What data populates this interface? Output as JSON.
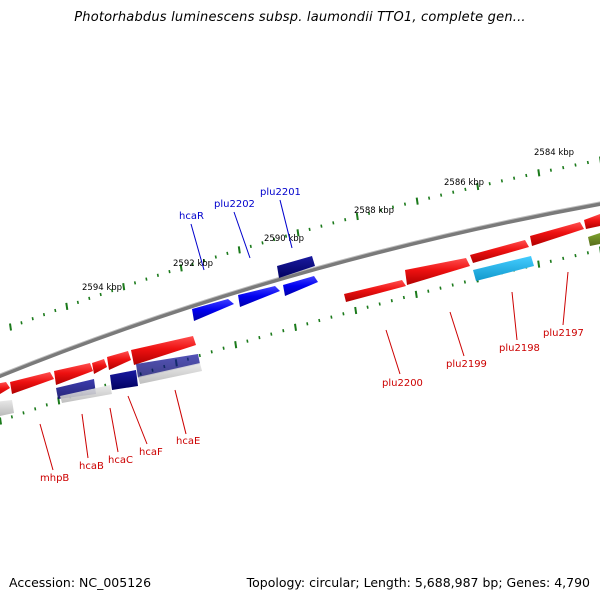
{
  "title": "Photorhabdus luminescens subsp. laumondii TTO1, complete gen...",
  "footer": {
    "accession": "Accession: NC_005126",
    "info": "Topology: circular; Length: 5,688,987 bp; Genes: 4,790"
  },
  "colors": {
    "backbone": "#808080",
    "tick": "#1b7a1b",
    "forward_gene": "#ee1111",
    "forward_label": "#cc0000",
    "reverse_gene": "#0000ff",
    "reverse_label": "#0000cc",
    "highlight_dark": "#000080",
    "cyan_gene": "#22bbee",
    "olive_gene": "#6b8e23"
  },
  "scale_labels": [
    {
      "text": "2584 kbp"
    },
    {
      "text": "2586 kbp"
    },
    {
      "text": "2588 kbp"
    },
    {
      "text": "2590 kbp"
    },
    {
      "text": "2592 kbp"
    },
    {
      "text": "2594 kbp"
    }
  ],
  "labels_top": [
    {
      "text": "hcaR"
    },
    {
      "text": "plu2202"
    },
    {
      "text": "plu2201"
    }
  ],
  "labels_bottom": [
    {
      "text": "mhpB"
    },
    {
      "text": "hcaB"
    },
    {
      "text": "hcaC"
    },
    {
      "text": "hcaF"
    },
    {
      "text": "hcaE"
    },
    {
      "text": "plu2200"
    },
    {
      "text": "plu2199"
    },
    {
      "text": "plu2198"
    },
    {
      "text": "plu2197"
    }
  ]
}
